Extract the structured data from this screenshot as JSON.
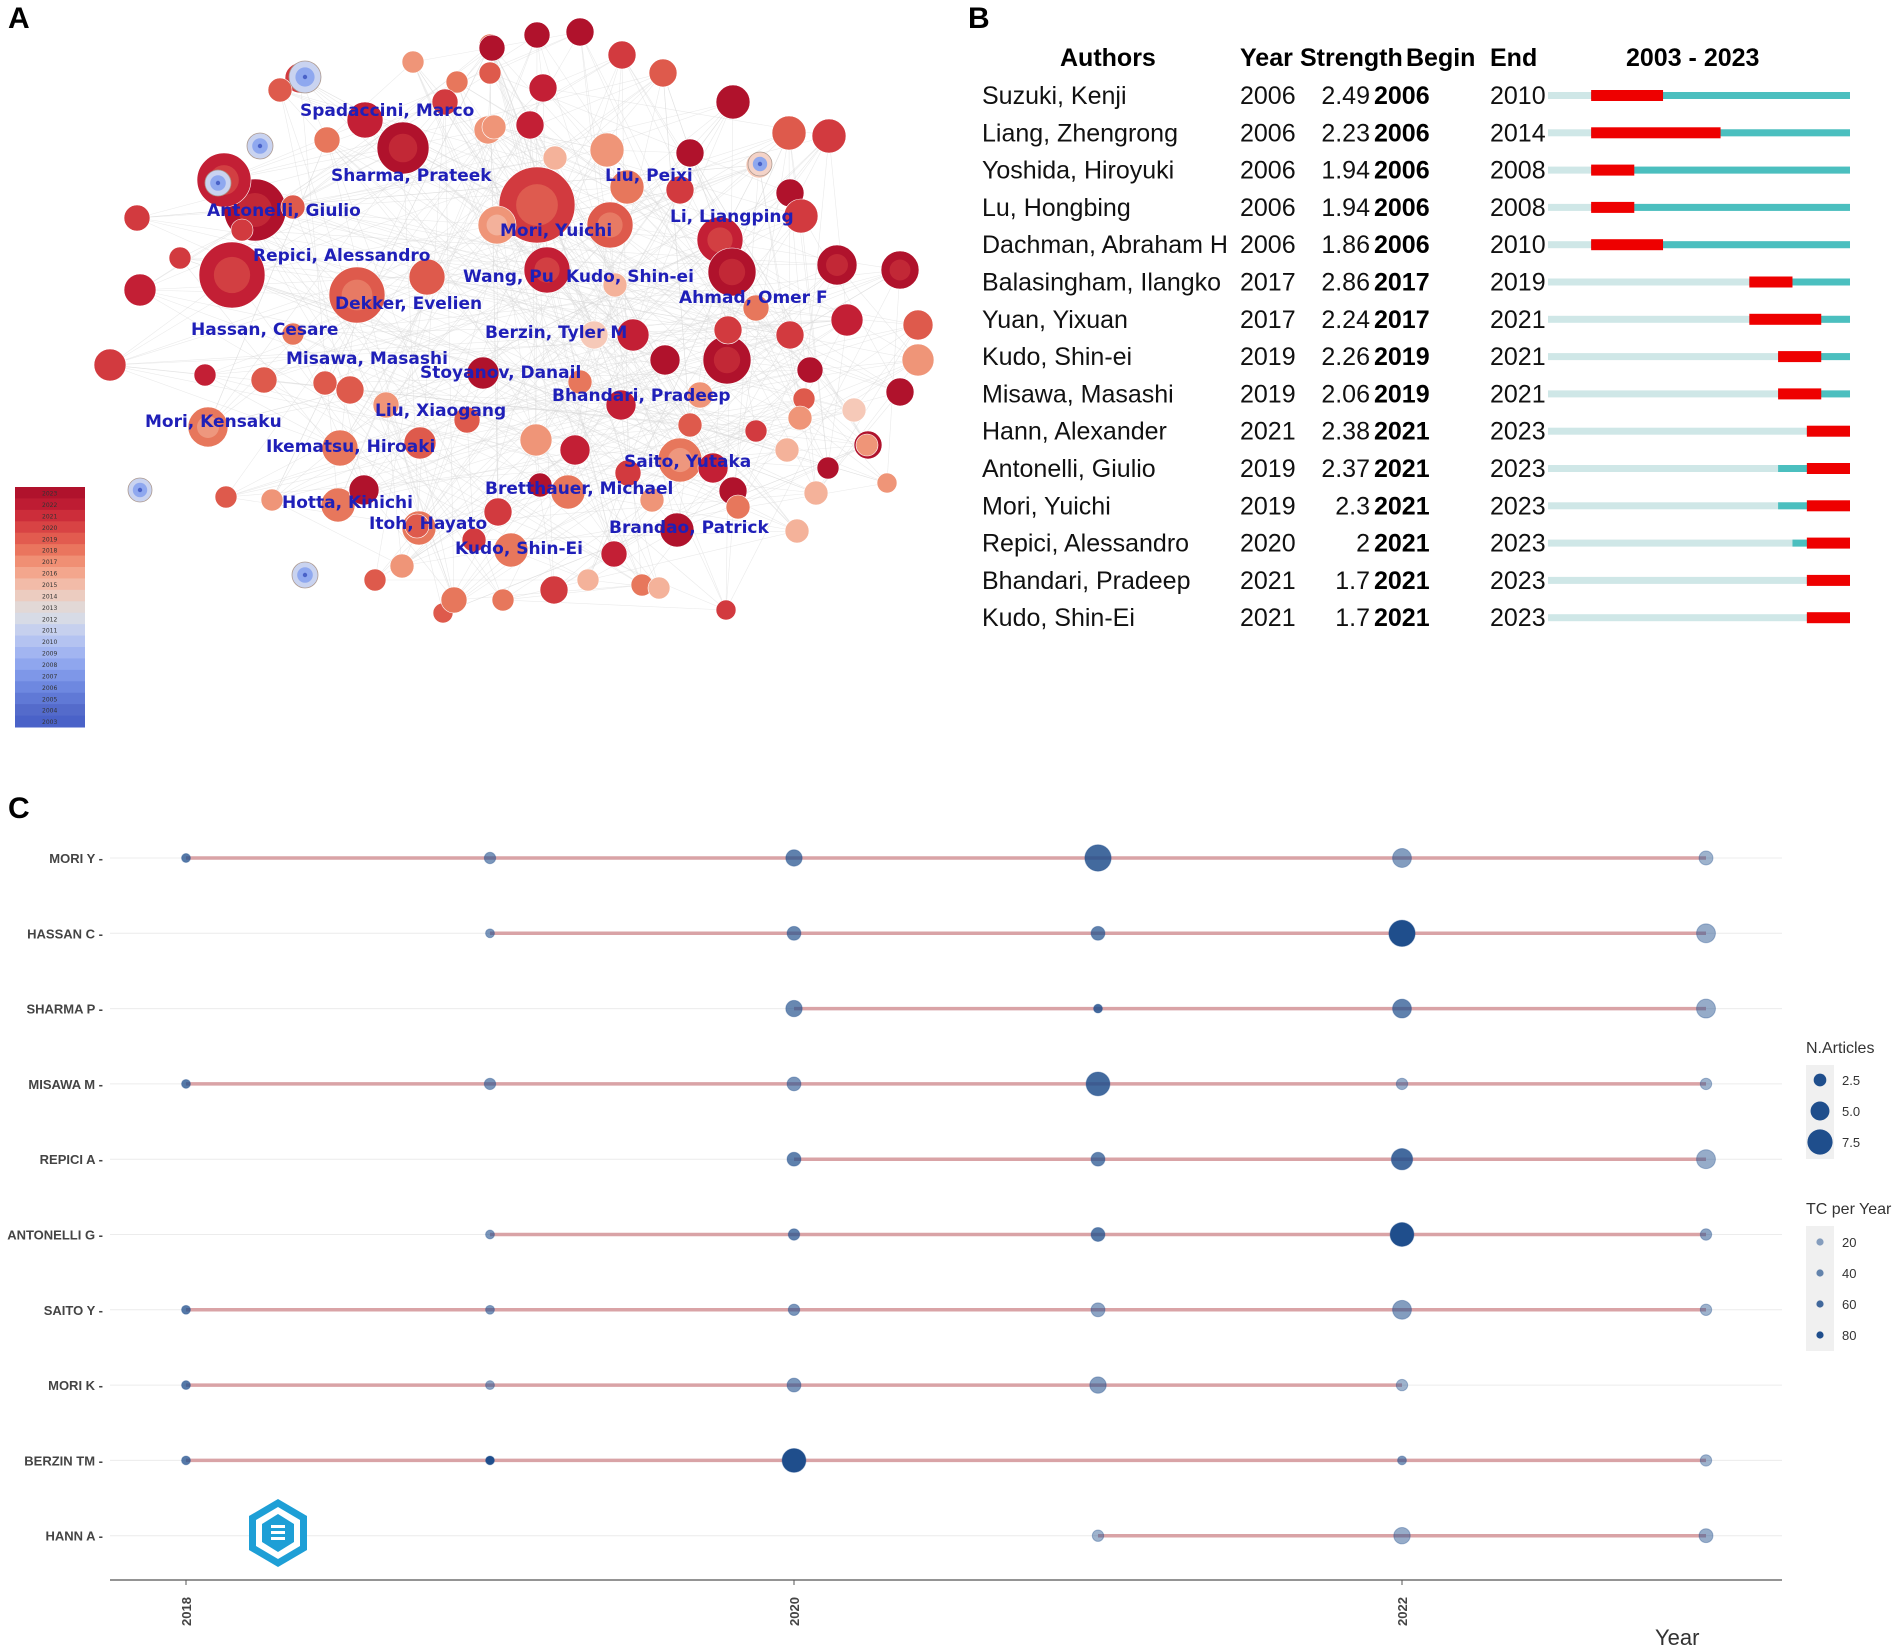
{
  "panels": {
    "a": "A",
    "b": "B",
    "c": "C"
  },
  "colors": {
    "recent": "#c0152f",
    "old": "#5b6fd6",
    "label": "#1f1fb8",
    "burst": "#ee0000",
    "active": "#4bbfbf",
    "inactive": "#cfe7e7",
    "line": "#d9a3a6",
    "dot": "#1f4e8c"
  },
  "network": {
    "authors": [
      "Spadaccini, Marco",
      "Sharma, Prateek",
      "Liu, Peixi",
      "Antonelli, Giulio",
      "Li, Liangping",
      "Mori, Yuichi",
      "Repici, Alessandro",
      "Wang, Pu",
      "Kudo, Shin-ei",
      "Dekker, Evelien",
      "Ahmad, Omer F",
      "Hassan, Cesare",
      "Berzin, Tyler M",
      "Misawa, Masashi",
      "Stoyanov, Danail",
      "Bhandari, Pradeep",
      "Liu, Xiaogang",
      "Mori, Kensaku",
      "Ikematsu, Hiroaki",
      "Saito, Yutaka",
      "Bretthauer, Michael",
      "Hotta, Kinichi",
      "Itoh, Hayato",
      "Brandao, Patrick",
      "Kudo, Shin-Ei"
    ],
    "legend_years": [
      "2023",
      "2022",
      "2021",
      "2020",
      "2019",
      "2018",
      "2017",
      "2016",
      "2015",
      "2014",
      "2013",
      "2012",
      "2011",
      "2010",
      "2009",
      "2008",
      "2007",
      "2006",
      "2005",
      "2004",
      "2003"
    ]
  },
  "burst_table": {
    "headers": {
      "authors": "Authors",
      "year": "Year",
      "strength": "Strength",
      "begin": "Begin",
      "end": "End",
      "range": "2003 - 2023"
    },
    "range_start": 2003,
    "range_end": 2023,
    "rows": [
      {
        "author": "Suzuki, Kenji",
        "year": "2006",
        "strength": "2.49",
        "begin": "2006",
        "end": "2010"
      },
      {
        "author": "Liang, Zhengrong",
        "year": "2006",
        "strength": "2.23",
        "begin": "2006",
        "end": "2014"
      },
      {
        "author": "Yoshida, Hiroyuki",
        "year": "2006",
        "strength": "1.94",
        "begin": "2006",
        "end": "2008"
      },
      {
        "author": "Lu, Hongbing",
        "year": "2006",
        "strength": "1.94",
        "begin": "2006",
        "end": "2008"
      },
      {
        "author": "Dachman, Abraham H",
        "year": "2006",
        "strength": "1.86",
        "begin": "2006",
        "end": "2010"
      },
      {
        "author": "Balasingham, Ilangko",
        "year": "2017",
        "strength": "2.86",
        "begin": "2017",
        "end": "2019"
      },
      {
        "author": "Yuan, Yixuan",
        "year": "2017",
        "strength": "2.24",
        "begin": "2017",
        "end": "2021"
      },
      {
        "author": "Kudo, Shin-ei",
        "year": "2019",
        "strength": "2.26",
        "begin": "2019",
        "end": "2021"
      },
      {
        "author": "Misawa, Masashi",
        "year": "2019",
        "strength": "2.06",
        "begin": "2019",
        "end": "2021"
      },
      {
        "author": "Hann, Alexander",
        "year": "2021",
        "strength": "2.38",
        "begin": "2021",
        "end": "2023"
      },
      {
        "author": "Antonelli, Giulio",
        "year": "2019",
        "strength": "2.37",
        "begin": "2021",
        "end": "2023"
      },
      {
        "author": "Mori, Yuichi",
        "year": "2019",
        "strength": "2.3",
        "begin": "2021",
        "end": "2023"
      },
      {
        "author": "Repici, Alessandro",
        "year": "2020",
        "strength": "2",
        "begin": "2021",
        "end": "2023"
      },
      {
        "author": "Bhandari, Pradeep",
        "year": "2021",
        "strength": "1.7",
        "begin": "2021",
        "end": "2023"
      },
      {
        "author": "Kudo, Shin-Ei",
        "year": "2021",
        "strength": "1.7",
        "begin": "2021",
        "end": "2023"
      }
    ]
  },
  "chart_data": {
    "type": "scatter",
    "title": "",
    "xlabel": "Year",
    "ylabel": "",
    "x_ticks": [
      "2018",
      "2020",
      "2022"
    ],
    "xlim": [
      2017.75,
      2023.25
    ],
    "authors": [
      "MORI Y",
      "HASSAN C",
      "SHARMA P",
      "MISAWA M",
      "REPICI A",
      "ANTONELLI G",
      "SAITO Y",
      "MORI K",
      "BERZIN TM",
      "HANN A"
    ],
    "series": [
      {
        "name": "MORI Y",
        "points": [
          {
            "x": 2018,
            "n": 1,
            "tc": 50
          },
          {
            "x": 2019,
            "n": 2,
            "tc": 30
          },
          {
            "x": 2020,
            "n": 4,
            "tc": 45
          },
          {
            "x": 2021,
            "n": 8,
            "tc": 60
          },
          {
            "x": 2022,
            "n": 5,
            "tc": 25
          },
          {
            "x": 2023,
            "n": 3,
            "tc": 10
          }
        ]
      },
      {
        "name": "HASSAN C",
        "points": [
          {
            "x": 2019,
            "n": 1,
            "tc": 30
          },
          {
            "x": 2020,
            "n": 3,
            "tc": 40
          },
          {
            "x": 2021,
            "n": 3,
            "tc": 45
          },
          {
            "x": 2022,
            "n": 8,
            "tc": 80
          },
          {
            "x": 2023,
            "n": 5,
            "tc": 15
          }
        ]
      },
      {
        "name": "SHARMA P",
        "points": [
          {
            "x": 2020,
            "n": 4,
            "tc": 40
          },
          {
            "x": 2021,
            "n": 1,
            "tc": 60
          },
          {
            "x": 2022,
            "n": 5,
            "tc": 45
          },
          {
            "x": 2023,
            "n": 5,
            "tc": 15
          }
        ]
      },
      {
        "name": "MISAWA M",
        "points": [
          {
            "x": 2018,
            "n": 1,
            "tc": 50
          },
          {
            "x": 2019,
            "n": 2,
            "tc": 30
          },
          {
            "x": 2020,
            "n": 3,
            "tc": 30
          },
          {
            "x": 2021,
            "n": 7,
            "tc": 60
          },
          {
            "x": 2022,
            "n": 2,
            "tc": 15
          },
          {
            "x": 2023,
            "n": 2,
            "tc": 10
          }
        ]
      },
      {
        "name": "REPICI A",
        "points": [
          {
            "x": 2020,
            "n": 3,
            "tc": 45
          },
          {
            "x": 2021,
            "n": 3,
            "tc": 45
          },
          {
            "x": 2022,
            "n": 6,
            "tc": 60
          },
          {
            "x": 2023,
            "n": 5,
            "tc": 15
          }
        ]
      },
      {
        "name": "ANTONELLI G",
        "points": [
          {
            "x": 2019,
            "n": 1,
            "tc": 30
          },
          {
            "x": 2020,
            "n": 2,
            "tc": 45
          },
          {
            "x": 2021,
            "n": 3,
            "tc": 50
          },
          {
            "x": 2022,
            "n": 7,
            "tc": 80
          },
          {
            "x": 2023,
            "n": 2,
            "tc": 20
          }
        ]
      },
      {
        "name": "SAITO Y",
        "points": [
          {
            "x": 2018,
            "n": 1,
            "tc": 50
          },
          {
            "x": 2019,
            "n": 1,
            "tc": 30
          },
          {
            "x": 2020,
            "n": 2,
            "tc": 30
          },
          {
            "x": 2021,
            "n": 3,
            "tc": 20
          },
          {
            "x": 2022,
            "n": 5,
            "tc": 25
          },
          {
            "x": 2023,
            "n": 2,
            "tc": 10
          }
        ]
      },
      {
        "name": "MORI K",
        "points": [
          {
            "x": 2018,
            "n": 1,
            "tc": 50
          },
          {
            "x": 2019,
            "n": 1,
            "tc": 20
          },
          {
            "x": 2020,
            "n": 3,
            "tc": 30
          },
          {
            "x": 2021,
            "n": 4,
            "tc": 25
          },
          {
            "x": 2022,
            "n": 2,
            "tc": 10
          }
        ]
      },
      {
        "name": "BERZIN TM",
        "points": [
          {
            "x": 2018,
            "n": 1,
            "tc": 50
          },
          {
            "x": 2019,
            "n": 1,
            "tc": 80
          },
          {
            "x": 2020,
            "n": 7,
            "tc": 80
          },
          {
            "x": 2022,
            "n": 1,
            "tc": 30
          },
          {
            "x": 2023,
            "n": 2,
            "tc": 10
          }
        ]
      },
      {
        "name": "HANN A",
        "points": [
          {
            "x": 2021,
            "n": 2,
            "tc": 10
          },
          {
            "x": 2022,
            "n": 4,
            "tc": 15
          },
          {
            "x": 2023,
            "n": 3,
            "tc": 15
          }
        ]
      }
    ],
    "legend": {
      "size_title": "N.Articles",
      "size_values": [
        "2.5",
        "5.0",
        "7.5"
      ],
      "color_title": "TC per Year",
      "color_values": [
        "20",
        "40",
        "60",
        "80"
      ]
    }
  }
}
